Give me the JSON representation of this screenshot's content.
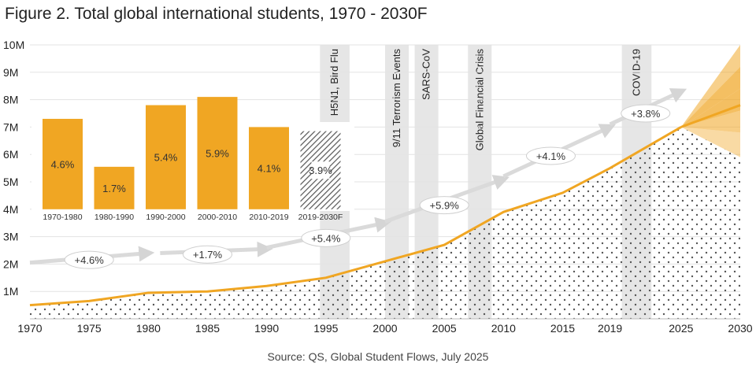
{
  "title": "Figure 2. Total global international students, 1970 - 2030F",
  "source": "Source: QS, Global Student Flows, July 2025",
  "colors": {
    "accent": "#F0A623",
    "accent_light": "#F7D48C",
    "accent_mid": "#F4BE57",
    "band": "#E6E6E6",
    "arrow": "#DADADA",
    "dots": "#555555"
  },
  "chart_data": {
    "type": "area",
    "title": "Figure 2. Total global international students, 1970 - 2030F",
    "xlabel": "",
    "ylabel": "",
    "xlim": [
      1970,
      2030
    ],
    "ylim": [
      0,
      10000000
    ],
    "x_ticks": [
      "1970",
      "1975",
      "1980",
      "1985",
      "1990",
      "1995",
      "2000",
      "2005",
      "2010",
      "2015",
      "2019",
      "2025",
      "2030"
    ],
    "x_tick_values": [
      1970,
      1975,
      1980,
      1985,
      1990,
      1995,
      2000,
      2005,
      2010,
      2015,
      2019,
      2025,
      2030
    ],
    "y_ticks": [
      "1M",
      "2M",
      "3M",
      "4M",
      "5M",
      "6M",
      "7M",
      "8M",
      "9M",
      "10M"
    ],
    "y_tick_values": [
      1000000,
      2000000,
      3000000,
      4000000,
      5000000,
      6000000,
      7000000,
      8000000,
      9000000,
      10000000
    ],
    "series": [
      {
        "name": "International students",
        "x": [
          1970,
          1975,
          1980,
          1985,
          1990,
          1995,
          2000,
          2005,
          2010,
          2015,
          2019,
          2025
        ],
        "values": [
          500000,
          650000,
          950000,
          1000000,
          1200000,
          1500000,
          2100000,
          2700000,
          3900000,
          4600000,
          5500000,
          7000000
        ]
      }
    ],
    "forecast": {
      "from_year": 2025,
      "to_year": 2030,
      "start_value": 7000000,
      "fan_values": [
        5900000,
        6800000,
        7600000,
        8400000,
        9200000,
        10000000
      ],
      "central_value": 7800000
    },
    "events": [
      {
        "label": "H5N1, Bird Flu",
        "start": 1994.5,
        "end": 1997
      },
      {
        "label": "9/11 Terrorism Events",
        "start": 2000,
        "end": 2002
      },
      {
        "label": "SARS-CoV",
        "start": 2002.5,
        "end": 2004.5
      },
      {
        "label": "Global Financial Crisis",
        "start": 2007,
        "end": 2009
      },
      {
        "label": "COVID-19",
        "start": 2020,
        "end": 2022.5
      }
    ],
    "growth_arrows": [
      {
        "label": "+4.6%",
        "x": 1975,
        "y": 2150000,
        "x0": 1970,
        "y0": 2050000,
        "x1": 1980,
        "y1": 2400000
      },
      {
        "label": "+1.7%",
        "x": 1985,
        "y": 2350000,
        "x0": 1981,
        "y0": 2400000,
        "x1": 1990,
        "y1": 2550000
      },
      {
        "label": "+5.4%",
        "x": 1995,
        "y": 2950000,
        "x0": 1990,
        "y0": 2600000,
        "x1": 2000,
        "y1": 3500000
      },
      {
        "label": "+5.9%",
        "x": 2005,
        "y": 4150000,
        "x0": 2000,
        "y0": 3550000,
        "x1": 2010,
        "y1": 5100000
      },
      {
        "label": "+4.1%",
        "x": 2014,
        "y": 5950000,
        "x0": 2010,
        "y0": 5200000,
        "x1": 2019,
        "y1": 7000000
      },
      {
        "label": "+3.8%",
        "x": 2022,
        "y": 7500000,
        "x0": 2019,
        "y0": 7100000,
        "x1": 2025,
        "y1": 8300000
      }
    ],
    "inset": {
      "type": "bar",
      "categories": [
        "1970-1980",
        "1980-1990",
        "1990-2000",
        "2000-2010",
        "2010-2019",
        "2019-2030F"
      ],
      "values": [
        4.6,
        1.7,
        5.4,
        5.9,
        4.1,
        3.9
      ],
      "labels": [
        "4.6%",
        "1.7%",
        "5.4%",
        "5.9%",
        "4.1%",
        "3.9%"
      ],
      "bar_heights_m": [
        7.3,
        5.55,
        7.8,
        8.1,
        7.0,
        6.85
      ],
      "forecast_index": 5
    }
  }
}
